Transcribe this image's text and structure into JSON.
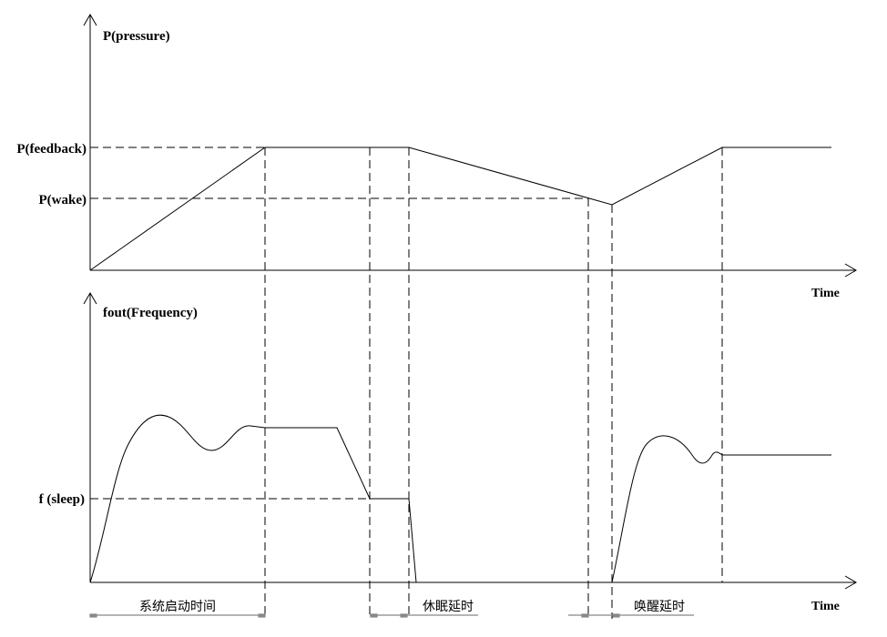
{
  "top_chart": {
    "y_axis_label": "P(pressure)",
    "levels": [
      "P(feedback)",
      "P(wake)"
    ],
    "x_axis_label": "Time"
  },
  "bottom_chart": {
    "y_axis_label": "fout(Frequency)",
    "levels": [
      "f (sleep)"
    ],
    "x_axis_label": "Time"
  },
  "intervals": [
    "系统启动时间",
    "休眠延时",
    "唤醒延时"
  ]
}
